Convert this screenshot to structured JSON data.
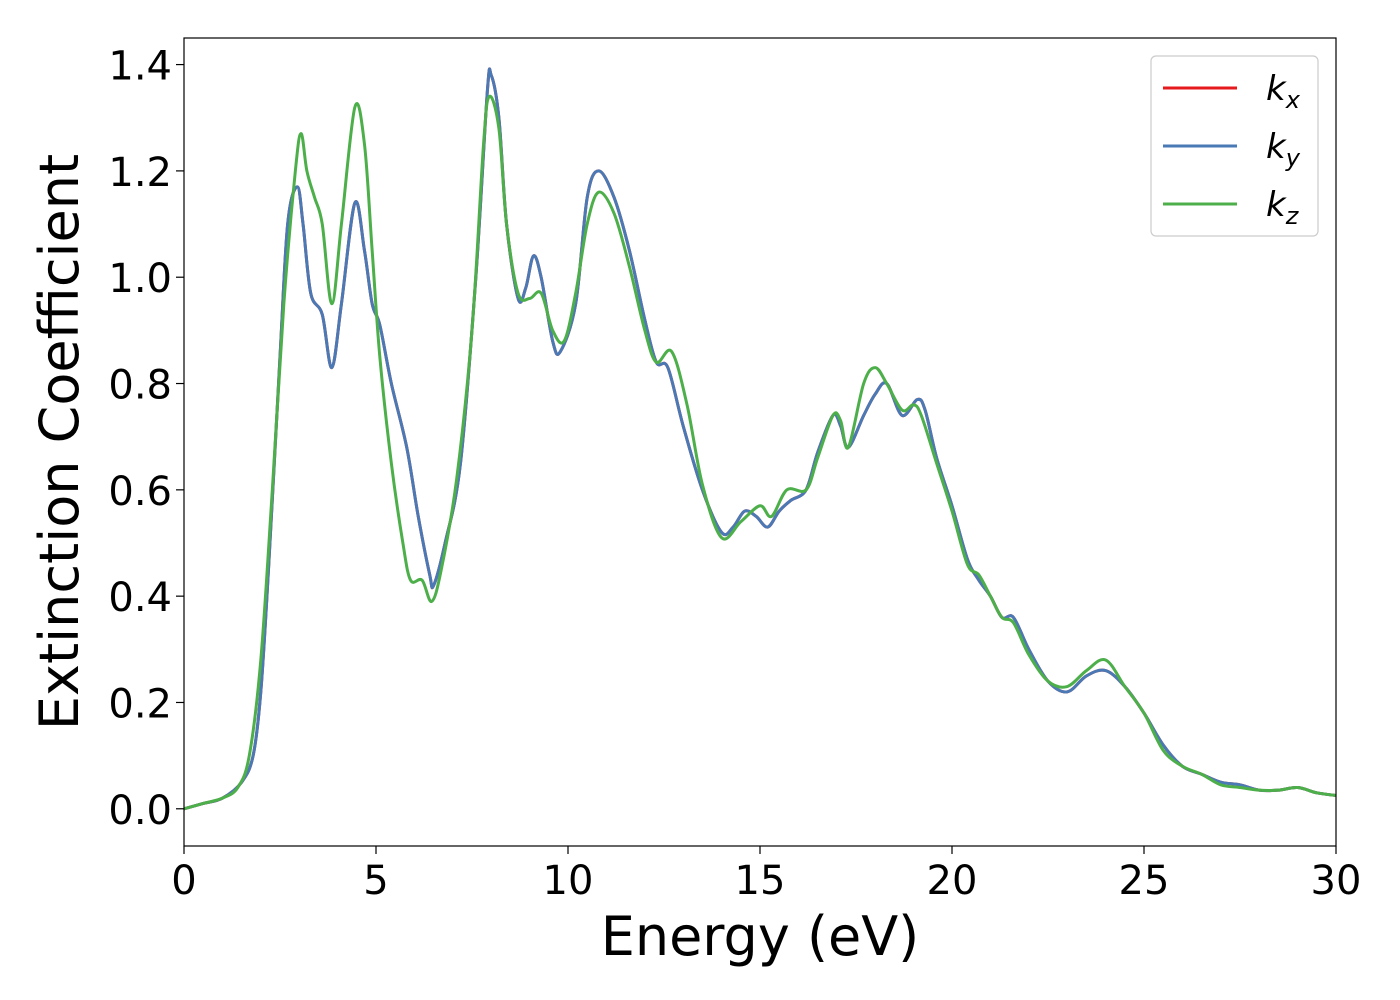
{
  "chart_data": {
    "type": "line",
    "title": "",
    "xlabel": "Energy (eV)",
    "ylabel": "Extinction Coefficient",
    "xlim": [
      0,
      30
    ],
    "ylim": [
      -0.07,
      1.45
    ],
    "xticks": [
      0,
      5,
      10,
      15,
      20,
      25,
      30
    ],
    "xtick_labels": [
      "0",
      "5",
      "10",
      "15",
      "20",
      "25",
      "30"
    ],
    "yticks": [
      0.0,
      0.2,
      0.4,
      0.6,
      0.8,
      1.0,
      1.2,
      1.4
    ],
    "ytick_labels": [
      "0.0",
      "0.2",
      "0.4",
      "0.6",
      "0.8",
      "1.0",
      "1.2",
      "1.4"
    ],
    "grid": false,
    "legend_position": "top-right",
    "series": [
      {
        "name": "k_x",
        "label_base": "k",
        "label_sub": "x",
        "color": "#e41a1c",
        "points": [
          [
            0,
            0.0
          ],
          [
            0.5,
            0.01
          ],
          [
            1.0,
            0.02
          ],
          [
            1.5,
            0.05
          ],
          [
            1.8,
            0.1
          ],
          [
            2.0,
            0.22
          ],
          [
            2.2,
            0.45
          ],
          [
            2.5,
            0.85
          ],
          [
            2.7,
            1.1
          ],
          [
            2.95,
            1.17
          ],
          [
            3.1,
            1.1
          ],
          [
            3.3,
            0.97
          ],
          [
            3.6,
            0.93
          ],
          [
            3.85,
            0.83
          ],
          [
            4.1,
            0.95
          ],
          [
            4.45,
            1.14
          ],
          [
            4.7,
            1.05
          ],
          [
            4.9,
            0.95
          ],
          [
            5.1,
            0.91
          ],
          [
            5.4,
            0.8
          ],
          [
            5.8,
            0.68
          ],
          [
            6.1,
            0.55
          ],
          [
            6.4,
            0.44
          ],
          [
            6.5,
            0.42
          ],
          [
            6.8,
            0.5
          ],
          [
            7.2,
            0.65
          ],
          [
            7.6,
            1.0
          ],
          [
            7.9,
            1.35
          ],
          [
            8.0,
            1.38
          ],
          [
            8.2,
            1.3
          ],
          [
            8.4,
            1.1
          ],
          [
            8.7,
            0.96
          ],
          [
            8.9,
            0.98
          ],
          [
            9.1,
            1.04
          ],
          [
            9.3,
            1.0
          ],
          [
            9.6,
            0.88
          ],
          [
            9.8,
            0.86
          ],
          [
            10.2,
            0.95
          ],
          [
            10.5,
            1.15
          ],
          [
            10.8,
            1.2
          ],
          [
            11.2,
            1.15
          ],
          [
            11.6,
            1.05
          ],
          [
            12.0,
            0.92
          ],
          [
            12.3,
            0.84
          ],
          [
            12.6,
            0.83
          ],
          [
            13.0,
            0.72
          ],
          [
            13.5,
            0.6
          ],
          [
            14.0,
            0.52
          ],
          [
            14.3,
            0.53
          ],
          [
            14.6,
            0.56
          ],
          [
            14.9,
            0.55
          ],
          [
            15.2,
            0.53
          ],
          [
            15.5,
            0.56
          ],
          [
            15.8,
            0.58
          ],
          [
            16.2,
            0.6
          ],
          [
            16.5,
            0.67
          ],
          [
            16.9,
            0.74
          ],
          [
            17.1,
            0.72
          ],
          [
            17.3,
            0.68
          ],
          [
            17.7,
            0.74
          ],
          [
            18.0,
            0.78
          ],
          [
            18.3,
            0.8
          ],
          [
            18.7,
            0.74
          ],
          [
            19.1,
            0.77
          ],
          [
            19.3,
            0.75
          ],
          [
            19.6,
            0.66
          ],
          [
            20.0,
            0.57
          ],
          [
            20.4,
            0.47
          ],
          [
            20.7,
            0.43
          ],
          [
            21.0,
            0.4
          ],
          [
            21.3,
            0.36
          ],
          [
            21.6,
            0.36
          ],
          [
            22.0,
            0.3
          ],
          [
            22.5,
            0.24
          ],
          [
            23.0,
            0.22
          ],
          [
            23.5,
            0.25
          ],
          [
            24.0,
            0.26
          ],
          [
            24.5,
            0.23
          ],
          [
            25.0,
            0.18
          ],
          [
            25.5,
            0.12
          ],
          [
            26.0,
            0.08
          ],
          [
            26.5,
            0.065
          ],
          [
            27.0,
            0.05
          ],
          [
            27.5,
            0.045
          ],
          [
            28.0,
            0.035
          ],
          [
            28.5,
            0.035
          ],
          [
            29.0,
            0.04
          ],
          [
            29.5,
            0.03
          ],
          [
            30.0,
            0.025
          ]
        ]
      },
      {
        "name": "k_y",
        "label_base": "k",
        "label_sub": "y",
        "color": "#4a7ab5",
        "points": [
          [
            0,
            0.0
          ],
          [
            0.5,
            0.01
          ],
          [
            1.0,
            0.02
          ],
          [
            1.5,
            0.05
          ],
          [
            1.8,
            0.1
          ],
          [
            2.0,
            0.22
          ],
          [
            2.2,
            0.45
          ],
          [
            2.5,
            0.85
          ],
          [
            2.7,
            1.1
          ],
          [
            2.95,
            1.17
          ],
          [
            3.1,
            1.1
          ],
          [
            3.3,
            0.97
          ],
          [
            3.6,
            0.93
          ],
          [
            3.85,
            0.83
          ],
          [
            4.1,
            0.95
          ],
          [
            4.45,
            1.14
          ],
          [
            4.7,
            1.05
          ],
          [
            4.9,
            0.95
          ],
          [
            5.1,
            0.91
          ],
          [
            5.4,
            0.8
          ],
          [
            5.8,
            0.68
          ],
          [
            6.1,
            0.55
          ],
          [
            6.4,
            0.44
          ],
          [
            6.5,
            0.42
          ],
          [
            6.8,
            0.5
          ],
          [
            7.2,
            0.65
          ],
          [
            7.6,
            1.0
          ],
          [
            7.9,
            1.35
          ],
          [
            8.0,
            1.38
          ],
          [
            8.2,
            1.3
          ],
          [
            8.4,
            1.1
          ],
          [
            8.7,
            0.96
          ],
          [
            8.9,
            0.98
          ],
          [
            9.1,
            1.04
          ],
          [
            9.3,
            1.0
          ],
          [
            9.6,
            0.88
          ],
          [
            9.8,
            0.86
          ],
          [
            10.2,
            0.95
          ],
          [
            10.5,
            1.15
          ],
          [
            10.8,
            1.2
          ],
          [
            11.2,
            1.15
          ],
          [
            11.6,
            1.05
          ],
          [
            12.0,
            0.92
          ],
          [
            12.3,
            0.84
          ],
          [
            12.6,
            0.83
          ],
          [
            13.0,
            0.72
          ],
          [
            13.5,
            0.6
          ],
          [
            14.0,
            0.52
          ],
          [
            14.3,
            0.53
          ],
          [
            14.6,
            0.56
          ],
          [
            14.9,
            0.55
          ],
          [
            15.2,
            0.53
          ],
          [
            15.5,
            0.56
          ],
          [
            15.8,
            0.58
          ],
          [
            16.2,
            0.6
          ],
          [
            16.5,
            0.67
          ],
          [
            16.9,
            0.74
          ],
          [
            17.1,
            0.72
          ],
          [
            17.3,
            0.68
          ],
          [
            17.7,
            0.74
          ],
          [
            18.0,
            0.78
          ],
          [
            18.3,
            0.8
          ],
          [
            18.7,
            0.74
          ],
          [
            19.1,
            0.77
          ],
          [
            19.3,
            0.75
          ],
          [
            19.6,
            0.66
          ],
          [
            20.0,
            0.57
          ],
          [
            20.4,
            0.47
          ],
          [
            20.7,
            0.43
          ],
          [
            21.0,
            0.4
          ],
          [
            21.3,
            0.36
          ],
          [
            21.6,
            0.36
          ],
          [
            22.0,
            0.3
          ],
          [
            22.5,
            0.24
          ],
          [
            23.0,
            0.22
          ],
          [
            23.5,
            0.25
          ],
          [
            24.0,
            0.26
          ],
          [
            24.5,
            0.23
          ],
          [
            25.0,
            0.18
          ],
          [
            25.5,
            0.12
          ],
          [
            26.0,
            0.08
          ],
          [
            26.5,
            0.065
          ],
          [
            27.0,
            0.05
          ],
          [
            27.5,
            0.045
          ],
          [
            28.0,
            0.035
          ],
          [
            28.5,
            0.035
          ],
          [
            29.0,
            0.04
          ],
          [
            29.5,
            0.03
          ],
          [
            30.0,
            0.025
          ]
        ]
      },
      {
        "name": "k_z",
        "label_base": "k",
        "label_sub": "z",
        "color": "#4daf4a",
        "points": [
          [
            0,
            0.0
          ],
          [
            0.5,
            0.01
          ],
          [
            1.0,
            0.02
          ],
          [
            1.4,
            0.04
          ],
          [
            1.7,
            0.1
          ],
          [
            2.0,
            0.28
          ],
          [
            2.3,
            0.6
          ],
          [
            2.6,
            0.95
          ],
          [
            2.9,
            1.2
          ],
          [
            3.05,
            1.27
          ],
          [
            3.2,
            1.2
          ],
          [
            3.4,
            1.15
          ],
          [
            3.6,
            1.1
          ],
          [
            3.85,
            0.95
          ],
          [
            4.1,
            1.1
          ],
          [
            4.45,
            1.32
          ],
          [
            4.7,
            1.25
          ],
          [
            4.9,
            1.05
          ],
          [
            5.1,
            0.85
          ],
          [
            5.4,
            0.65
          ],
          [
            5.7,
            0.5
          ],
          [
            5.9,
            0.43
          ],
          [
            6.2,
            0.43
          ],
          [
            6.45,
            0.39
          ],
          [
            6.7,
            0.45
          ],
          [
            7.1,
            0.62
          ],
          [
            7.5,
            0.9
          ],
          [
            7.8,
            1.25
          ],
          [
            7.95,
            1.34
          ],
          [
            8.2,
            1.28
          ],
          [
            8.4,
            1.1
          ],
          [
            8.7,
            0.97
          ],
          [
            9.0,
            0.96
          ],
          [
            9.3,
            0.97
          ],
          [
            9.6,
            0.9
          ],
          [
            9.9,
            0.88
          ],
          [
            10.2,
            0.97
          ],
          [
            10.5,
            1.1
          ],
          [
            10.8,
            1.16
          ],
          [
            11.2,
            1.12
          ],
          [
            11.6,
            1.02
          ],
          [
            12.0,
            0.9
          ],
          [
            12.3,
            0.84
          ],
          [
            12.7,
            0.86
          ],
          [
            13.1,
            0.76
          ],
          [
            13.5,
            0.61
          ],
          [
            14.0,
            0.51
          ],
          [
            14.5,
            0.54
          ],
          [
            15.0,
            0.57
          ],
          [
            15.3,
            0.55
          ],
          [
            15.7,
            0.6
          ],
          [
            16.2,
            0.6
          ],
          [
            16.5,
            0.66
          ],
          [
            16.9,
            0.74
          ],
          [
            17.1,
            0.73
          ],
          [
            17.3,
            0.68
          ],
          [
            17.7,
            0.8
          ],
          [
            18.0,
            0.83
          ],
          [
            18.3,
            0.8
          ],
          [
            18.7,
            0.75
          ],
          [
            19.0,
            0.76
          ],
          [
            19.2,
            0.74
          ],
          [
            19.6,
            0.65
          ],
          [
            20.0,
            0.56
          ],
          [
            20.4,
            0.46
          ],
          [
            20.7,
            0.44
          ],
          [
            21.0,
            0.4
          ],
          [
            21.3,
            0.36
          ],
          [
            21.6,
            0.35
          ],
          [
            22.0,
            0.29
          ],
          [
            22.5,
            0.24
          ],
          [
            23.0,
            0.23
          ],
          [
            23.5,
            0.26
          ],
          [
            24.0,
            0.28
          ],
          [
            24.5,
            0.23
          ],
          [
            25.0,
            0.18
          ],
          [
            25.5,
            0.11
          ],
          [
            26.0,
            0.08
          ],
          [
            26.5,
            0.065
          ],
          [
            27.0,
            0.045
          ],
          [
            27.5,
            0.04
          ],
          [
            28.0,
            0.035
          ],
          [
            28.5,
            0.035
          ],
          [
            29.0,
            0.04
          ],
          [
            29.5,
            0.03
          ],
          [
            30.0,
            0.025
          ]
        ]
      }
    ]
  }
}
